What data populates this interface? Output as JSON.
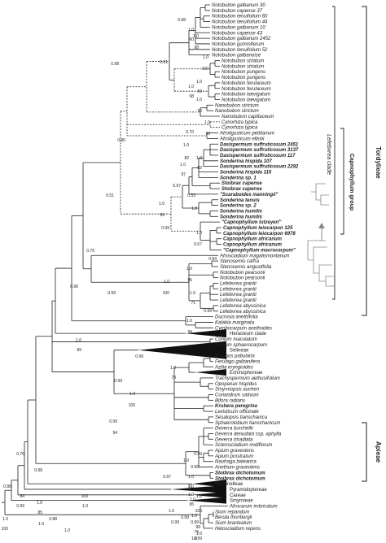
{
  "taxa": [
    {
      "name": "Notobubon galbanum 30",
      "bold": false
    },
    {
      "name": "Notobubon capense 37",
      "bold": false
    },
    {
      "name": "Notobubon tenuifolium 60",
      "bold": false
    },
    {
      "name": "Notobubon tenuifolium 44",
      "bold": false
    },
    {
      "name": "Notobubon galbanum 10",
      "bold": false
    },
    {
      "name": "Notobubon capense 43",
      "bold": false
    },
    {
      "name": "Notobubon galbanum 2452",
      "bold": false
    },
    {
      "name": "Notobubon gummiferum",
      "bold": false
    },
    {
      "name": "Notobubon tenuifolium 52",
      "bold": false
    },
    {
      "name": "Notobubon galbanoise",
      "bold": false
    },
    {
      "name": "Notobubon striatum",
      "bold": false
    },
    {
      "name": "Notobubon striatum",
      "bold": false
    },
    {
      "name": "Notobubon pungens",
      "bold": false
    },
    {
      "name": "Notobubon pungens",
      "bold": false
    },
    {
      "name": "Notobubon ferulaceum",
      "bold": false
    },
    {
      "name": "Notobubon ferulaceum",
      "bold": false
    },
    {
      "name": "Notobubon laevigatum",
      "bold": false
    },
    {
      "name": "Notobubon laevigatum",
      "bold": false
    },
    {
      "name": "Nanobubon strictum",
      "bold": false
    },
    {
      "name": "Nanobubon strictum",
      "bold": false
    },
    {
      "name": "Nanobubon capillaceum",
      "bold": false
    },
    {
      "name": "Cynorhiza typica",
      "bold": false
    },
    {
      "name": "Cynorhiza typica",
      "bold": false
    },
    {
      "name": "Afroligusticum petitianum",
      "bold": false
    },
    {
      "name": "Afroligusticum elliotii",
      "bold": false
    },
    {
      "name": "Dasispermum suffruticosum 2451",
      "bold": true
    },
    {
      "name": "Dasispermum suffruticosum 3137",
      "bold": true
    },
    {
      "name": "Dasispermum suffruticosum 117",
      "bold": true
    },
    {
      "name": "Sonderina hispida 107",
      "bold": true
    },
    {
      "name": "Dasispermum suffruticosum 2292",
      "bold": true
    },
    {
      "name": "Sonderina hispida 115",
      "bold": true
    },
    {
      "name": "Sonderina sp. 1",
      "bold": true
    },
    {
      "name": "Stoibrax capense",
      "bold": true
    },
    {
      "name": "Stoibrax capense",
      "bold": true
    },
    {
      "name": "\"Scaraboides manningii\"",
      "bold": true
    },
    {
      "name": "Sonderina tenuis",
      "bold": true
    },
    {
      "name": "Sonderina sp. 2",
      "bold": true
    },
    {
      "name": "Sonderina humilis",
      "bold": true
    },
    {
      "name": "Sonderina humilis",
      "bold": true
    },
    {
      "name": "\"Capnophyllum lutzeyeri\"",
      "bold": true
    },
    {
      "name": "Capnophyllum leiocarpon 125",
      "bold": true
    },
    {
      "name": "Capnophyllum leiocarpon 6978",
      "bold": true
    },
    {
      "name": "Capnophyllum africanum",
      "bold": true
    },
    {
      "name": "Capnophyllum africanum",
      "bold": true
    },
    {
      "name": "\"Capnophyllum macrocarpum\"",
      "bold": true
    },
    {
      "name": "Afrosciadium magalismontanum",
      "bold": false
    },
    {
      "name": "Stenosemis caffra",
      "bold": false
    },
    {
      "name": "Stenosemis angustifolia",
      "bold": false
    },
    {
      "name": "Notobubon pearsonii",
      "bold": false
    },
    {
      "name": "Notobubon pearsonii",
      "bold": false
    },
    {
      "name": "Lefebvrea grantii",
      "bold": false
    },
    {
      "name": "Lefebvrea grantii",
      "bold": false
    },
    {
      "name": "Lefebvrea grantii",
      "bold": false
    },
    {
      "name": "Lefebvrea grantii",
      "bold": false
    },
    {
      "name": "Lefebvrea abyssinica",
      "bold": false
    },
    {
      "name": "Lefebvrea abyssinica",
      "bold": false
    },
    {
      "name": "Ducrosia anethifolia",
      "bold": false
    },
    {
      "name": "Kalakia marginata",
      "bold": false
    },
    {
      "name": "Cymbocarpum anethoides",
      "bold": false
    },
    {
      "name": "Heracleum clade",
      "bold": false,
      "clade": true
    },
    {
      "name": "Conium maculatum",
      "bold": false
    },
    {
      "name": "Conium sphaerocarpum",
      "bold": false
    },
    {
      "name": "Selineae",
      "bold": false,
      "clade": true
    },
    {
      "name": "Prangos pabularia",
      "bold": false
    },
    {
      "name": "Ferulago galbanifera",
      "bold": false
    },
    {
      "name": "Azilia eryngioides",
      "bold": false
    },
    {
      "name": "Echinophoreae",
      "bold": false,
      "clade": true
    },
    {
      "name": "Trachyspermum aethusifolium",
      "bold": false
    },
    {
      "name": "Opopanax hispidus",
      "bold": false
    },
    {
      "name": "Smyrniopsis aucheri",
      "bold": false
    },
    {
      "name": "Coriandrum sativum",
      "bold": false
    },
    {
      "name": "Bifora radians",
      "bold": false
    },
    {
      "name": "Krubera peregrina",
      "bold": true
    },
    {
      "name": "Levisticum officinale",
      "bold": false
    },
    {
      "name": "Sesalopsis tianschanica",
      "bold": false
    },
    {
      "name": "Sphaerolobium tianschanicum",
      "bold": false
    },
    {
      "name": "Deverra burchellii",
      "bold": false
    },
    {
      "name": "Deverra denudata ssp. aphylla",
      "bold": false
    },
    {
      "name": "Deverra triradiata",
      "bold": false
    },
    {
      "name": "Scleroscladium nodiflorum",
      "bold": false
    },
    {
      "name": "Apium graveolens",
      "bold": false
    },
    {
      "name": "Apium prostratum",
      "bold": false
    },
    {
      "name": "Naufraga balearica",
      "bold": false
    },
    {
      "name": "Anethum graveolens",
      "bold": false
    },
    {
      "name": "Stoibrax dichotomum",
      "bold": true
    },
    {
      "name": "Stoibrax dichotomum",
      "bold": true
    },
    {
      "name": "Pimpinelleae",
      "bold": false,
      "clade": true
    },
    {
      "name": "Pyramidoptereae",
      "bold": false,
      "clade": true
    },
    {
      "name": "Careae",
      "bold": false,
      "clade": true
    },
    {
      "name": "Smyrnieae",
      "bold": false,
      "clade": true
    },
    {
      "name": "Afrocarum imbricatum",
      "bold": false
    },
    {
      "name": "Sium repandum",
      "bold": false
    },
    {
      "name": "Berula thunbergii",
      "bold": false
    },
    {
      "name": "Sium bracteatum",
      "bold": false
    },
    {
      "name": "Helosciadium repens",
      "bold": false
    }
  ],
  "support_values": [
    {
      "text": "0.98"
    },
    {
      "text": "1.0"
    },
    {
      "text": "98"
    },
    {
      "text": "1.0"
    },
    {
      "text": "60"
    },
    {
      "text": "0.98"
    },
    {
      "text": "0.81"
    },
    {
      "text": "1.0"
    },
    {
      "text": "100"
    },
    {
      "text": "1.0"
    },
    {
      "text": "99"
    },
    {
      "text": "1.0"
    },
    {
      "text": "96"
    },
    {
      "text": "1.0"
    },
    {
      "text": "98"
    },
    {
      "text": "1.0"
    },
    {
      "text": "99"
    },
    {
      "text": "0.70"
    },
    {
      "text": "1.0"
    },
    {
      "text": "82"
    },
    {
      "text": "0.80"
    },
    {
      "text": "1.0"
    },
    {
      "text": "82"
    },
    {
      "text": "1.0"
    },
    {
      "text": "97"
    },
    {
      "text": "0.97"
    },
    {
      "text": "0.51"
    },
    {
      "text": "1.0"
    },
    {
      "text": "99"
    },
    {
      "text": "0.53"
    },
    {
      "text": "1.0"
    },
    {
      "text": "0.99"
    },
    {
      "text": "1.0"
    },
    {
      "text": "0.67"
    },
    {
      "text": "0.84"
    },
    {
      "text": "0.75"
    },
    {
      "text": "1.0"
    },
    {
      "text": "96"
    },
    {
      "text": "1.0"
    },
    {
      "text": "100"
    },
    {
      "text": "0.96"
    },
    {
      "text": "0.99"
    },
    {
      "text": "1.0"
    },
    {
      "text": "71"
    },
    {
      "text": "0.99"
    },
    {
      "text": "1.0"
    },
    {
      "text": "99"
    },
    {
      "text": "1.0"
    },
    {
      "text": "89"
    },
    {
      "text": "0.99"
    },
    {
      "text": "1.0"
    },
    {
      "text": "78"
    },
    {
      "text": "0.99"
    },
    {
      "text": "1.0"
    },
    {
      "text": "100"
    },
    {
      "text": "0.99"
    },
    {
      "text": "94"
    },
    {
      "text": "0.99"
    },
    {
      "text": "1.0"
    },
    {
      "text": "0.99"
    },
    {
      "text": "0.98"
    },
    {
      "text": "1.0"
    },
    {
      "text": "1.0"
    },
    {
      "text": "71"
    },
    {
      "text": "1.0"
    },
    {
      "text": "0.97"
    },
    {
      "text": "1.0"
    },
    {
      "text": "95"
    },
    {
      "text": "1.0"
    },
    {
      "text": "100"
    },
    {
      "text": "0.99"
    },
    {
      "text": "0.76"
    },
    {
      "text": "0.88"
    },
    {
      "text": "1.0"
    },
    {
      "text": "85"
    },
    {
      "text": "1.0"
    },
    {
      "text": "0.88"
    },
    {
      "text": "1.0"
    },
    {
      "text": "0.99"
    },
    {
      "text": "76"
    },
    {
      "text": "1.0"
    },
    {
      "text": "100"
    },
    {
      "text": "1.0"
    },
    {
      "text": "84"
    },
    {
      "text": "0.99"
    },
    {
      "text": "1.0"
    },
    {
      "text": "0.99"
    },
    {
      "text": "99"
    },
    {
      "text": "1.0"
    },
    {
      "text": "100"
    },
    {
      "text": "1.0"
    },
    {
      "text": "0.99"
    },
    {
      "text": "1.0"
    }
  ],
  "side_labels": {
    "tordylieae": "Tordylieae",
    "lefebvrea_clade": "Lefebvrea clade",
    "capnophyllum_group": "Capnophyllum group",
    "apieae": "Apieae"
  },
  "colors": {
    "line": "#222222",
    "text": "#222222",
    "inset": "#888888"
  }
}
